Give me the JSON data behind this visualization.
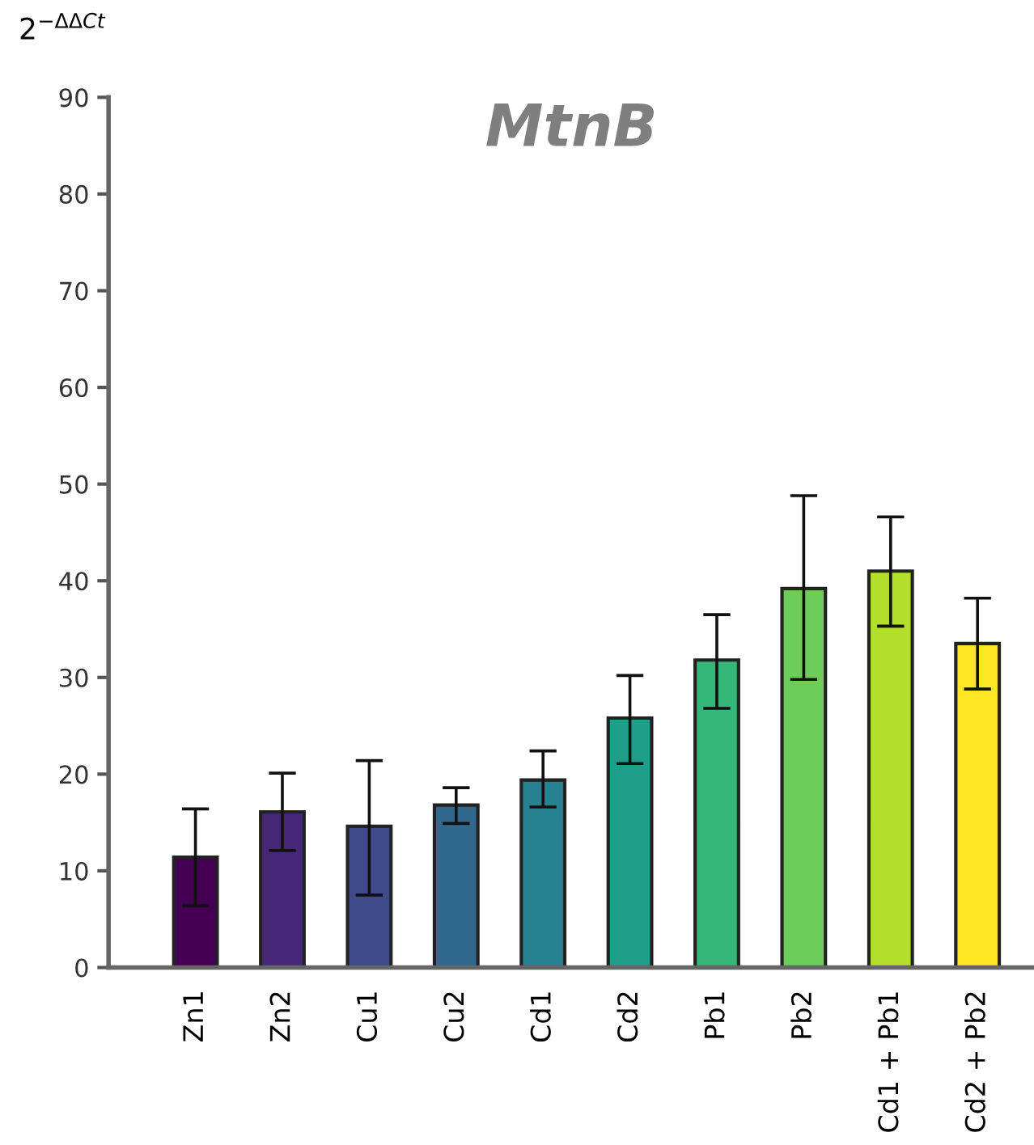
{
  "chart_data": {
    "type": "bar",
    "title": "MtnB",
    "ylabel": "2$^{−ΔΔCt}$",
    "categories": [
      "Zn1",
      "Zn2",
      "Cu1",
      "Cu2",
      "Cd1",
      "Cd2",
      "Pb1",
      "Pb2",
      "Cd1 + Pb1",
      "Cd2 + Pb2"
    ],
    "values": [
      11.4,
      16.1,
      14.6,
      16.8,
      19.4,
      25.8,
      31.8,
      39.2,
      41.0,
      33.5
    ],
    "errors": [
      [
        6.4,
        16.4
      ],
      [
        12.1,
        20.1
      ],
      [
        7.5,
        21.4
      ],
      [
        14.9,
        18.6
      ],
      [
        16.6,
        22.4
      ],
      [
        21.1,
        30.2
      ],
      [
        26.8,
        36.5
      ],
      [
        29.8,
        48.8
      ],
      [
        35.3,
        46.6
      ],
      [
        28.8,
        38.2
      ]
    ],
    "colors": [
      "#440154",
      "#472878",
      "#3e4a89",
      "#31688e",
      "#26828e",
      "#1f9e89",
      "#35b779",
      "#6dcd59",
      "#b4de2c",
      "#fde725"
    ],
    "ylim": [
      0,
      90
    ],
    "yticks": [
      0,
      10,
      20,
      30,
      40,
      50,
      60,
      70,
      80,
      90
    ],
    "grid": false
  }
}
